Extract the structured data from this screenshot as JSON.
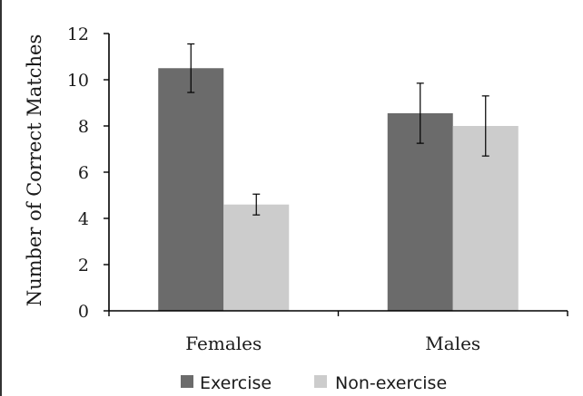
{
  "chart_data": {
    "type": "bar",
    "title": "",
    "xlabel": "",
    "ylabel": "Number of Correct Matches",
    "categories": [
      "Females",
      "Males"
    ],
    "series": [
      {
        "name": "Exercise",
        "values": [
          10.5,
          8.55
        ],
        "error": [
          1.05,
          1.3
        ]
      },
      {
        "name": "Non-exercise",
        "values": [
          4.6,
          8.0
        ],
        "error": [
          0.45,
          1.3
        ]
      }
    ],
    "ylim": [
      0,
      12
    ],
    "yticks": [
      "0",
      "2",
      "4",
      "6",
      "8",
      "10",
      "12"
    ],
    "grid": false,
    "legend_position": "bottom",
    "colors": {
      "Exercise": "#6b6b6b",
      "Non-exercise": "#cccccc",
      "axis": "#000000"
    }
  }
}
